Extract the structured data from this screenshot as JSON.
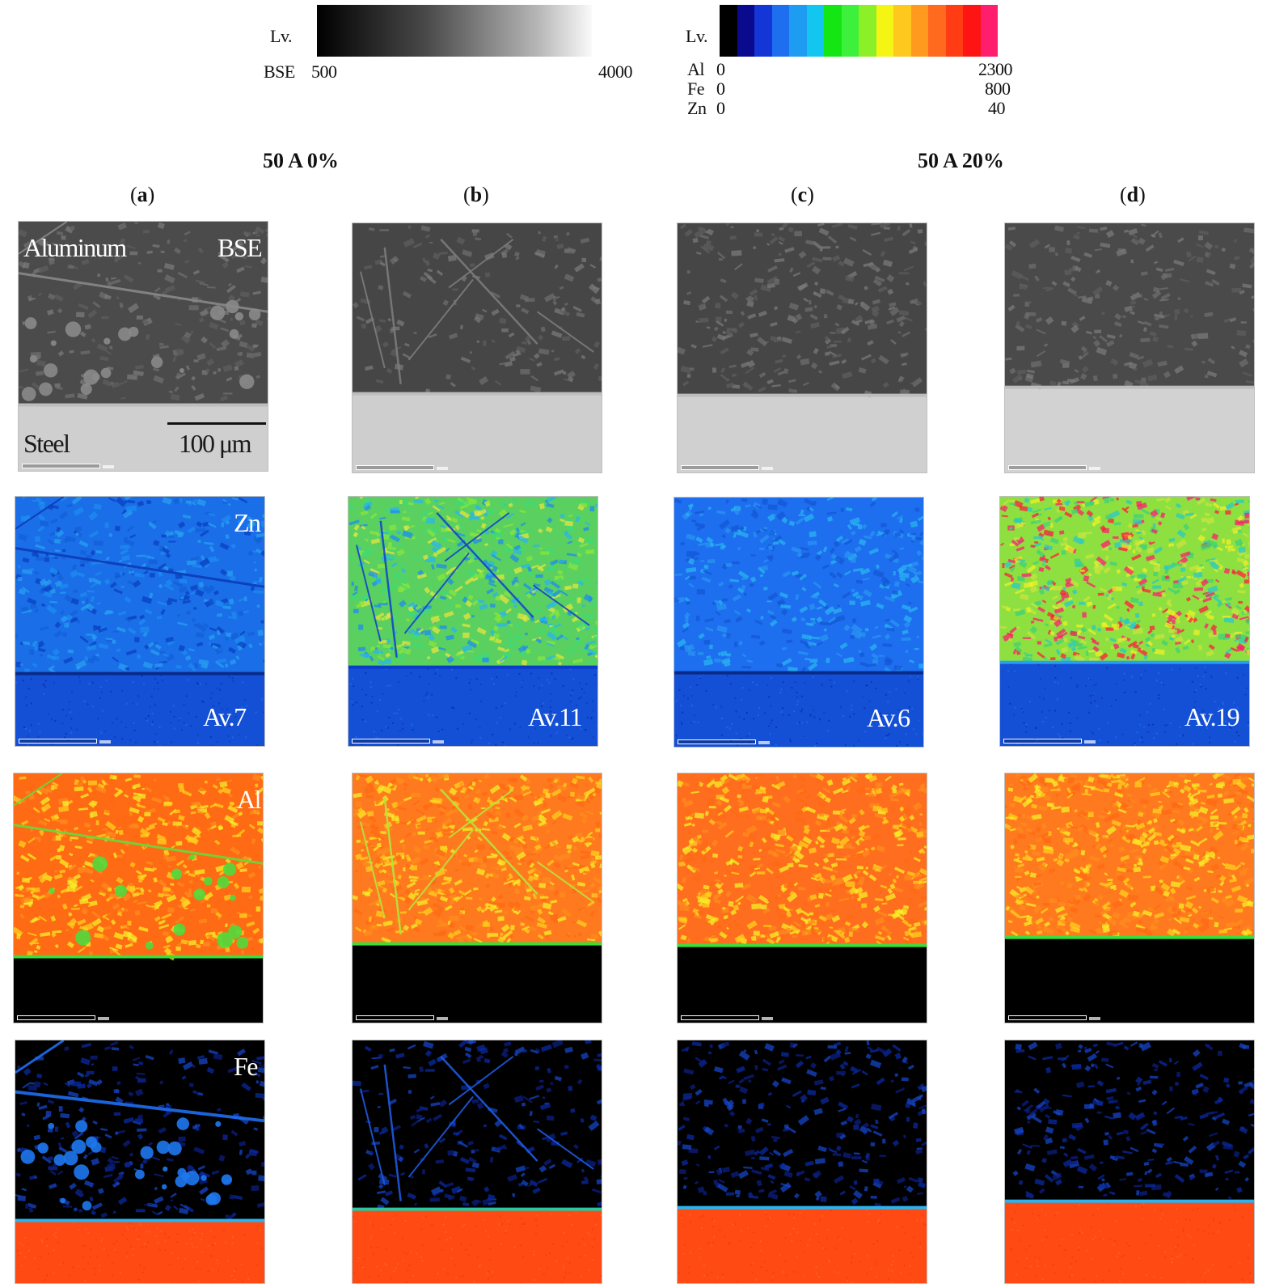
{
  "legend_bse": {
    "lv": "Lv.",
    "label": "BSE",
    "min": "500",
    "max": "4000"
  },
  "legend_map": {
    "lv": "Lv.",
    "rows": [
      {
        "el": "Al",
        "min": "0",
        "max": "2300"
      },
      {
        "el": "Fe",
        "min": "0",
        "max": "800"
      },
      {
        "el": "Zn",
        "min": "0",
        "max": "40"
      }
    ],
    "colors": [
      "#000000",
      "#0a0a8f",
      "#1436d6",
      "#1e6ef0",
      "#1e9cf2",
      "#13c6f0",
      "#14e614",
      "#3cf03c",
      "#8cf028",
      "#f5f514",
      "#ffc81e",
      "#ff9a1e",
      "#ff6a1e",
      "#ff3c14",
      "#ff1414",
      "#ff1e6e"
    ]
  },
  "conditions": {
    "left": "50 A 0%",
    "right": "50 A 20%"
  },
  "columns": [
    {
      "open": "(",
      "letter": "a",
      "close": ")"
    },
    {
      "open": "(",
      "letter": "b",
      "close": ")"
    },
    {
      "open": "(",
      "letter": "c",
      "close": ")"
    },
    {
      "open": "(",
      "letter": "d",
      "close": ")"
    }
  ],
  "labels": {
    "aluminum": "Aluminum",
    "bse": "BSE",
    "steel": "Steel",
    "scale": "100 μm",
    "zn": "Zn",
    "al": "Al",
    "fe": "Fe"
  },
  "averages": [
    "Av.7",
    "Av.11",
    "Av.6",
    "Av.19"
  ]
}
